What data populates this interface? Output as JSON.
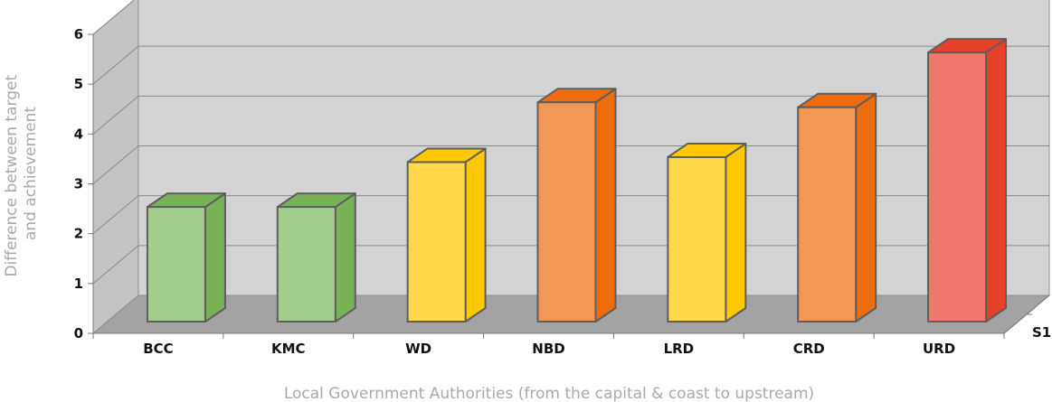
{
  "chart_data": {
    "type": "bar",
    "categories": [
      "BCC",
      "KMC",
      "WD",
      "NBD",
      "LRD",
      "CRD",
      "URD"
    ],
    "series": [
      {
        "name": "S1",
        "values": [
          2.3,
          2.3,
          3.2,
          4.4,
          3.3,
          4.3,
          5.4
        ]
      }
    ],
    "colors": [
      {
        "front": "#a2cd8a",
        "side": "#77b356",
        "top": "#77b356"
      },
      {
        "front": "#a2cd8a",
        "side": "#77b356",
        "top": "#77b356"
      },
      {
        "front": "#ffd94a",
        "side": "#ffc800",
        "top": "#ffc800"
      },
      {
        "front": "#f39854",
        "side": "#ec6c0e",
        "top": "#ec6c0e"
      },
      {
        "front": "#ffd94a",
        "side": "#ffc800",
        "top": "#ffc800"
      },
      {
        "front": "#f39854",
        "side": "#ec6c0e",
        "top": "#ec6c0e"
      },
      {
        "front": "#ef776b",
        "side": "#e4402a",
        "top": "#e4402a"
      }
    ],
    "xlabel": "Local Government Authorities (from the capital & coast to upstream)",
    "ylabel_lines": [
      "Difference between target",
      "and achievement"
    ],
    "ylim": [
      0,
      6
    ],
    "yticks": [
      0,
      1,
      2,
      3,
      4,
      5,
      6
    ],
    "grid": true,
    "projection": "3d"
  }
}
